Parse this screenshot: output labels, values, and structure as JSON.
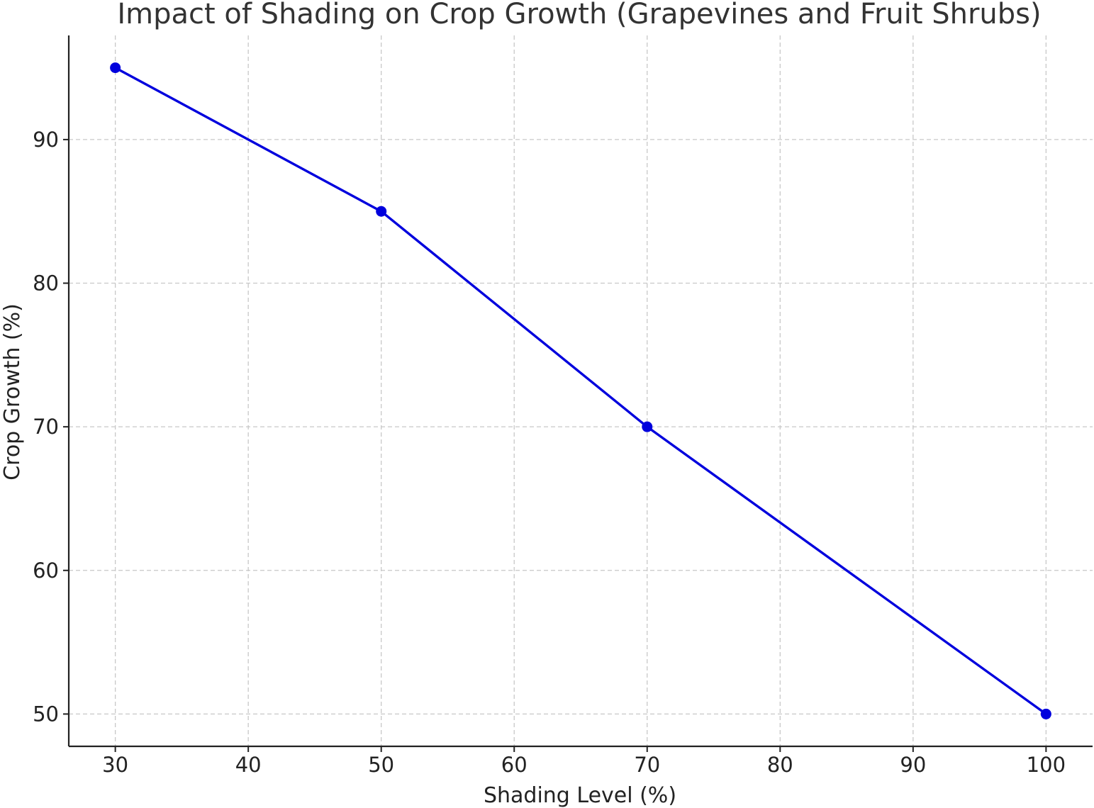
{
  "chart_data": {
    "type": "line",
    "title": "Impact of Shading on Crop Growth (Grapevines and Fruit Shrubs)",
    "xlabel": "Shading Level (%)",
    "ylabel": "Crop Growth (%)",
    "x": [
      30,
      50,
      70,
      100
    ],
    "series": [
      {
        "values": [
          95,
          85,
          70,
          50
        ],
        "color": "#0000dd",
        "marker": "circle"
      }
    ],
    "xlim": [
      26.5,
      103.5
    ],
    "ylim": [
      47.75,
      97.25
    ],
    "xticks": [
      30,
      40,
      50,
      60,
      70,
      80,
      90,
      100
    ],
    "yticks": [
      50,
      60,
      70,
      80,
      90
    ],
    "grid": true
  }
}
